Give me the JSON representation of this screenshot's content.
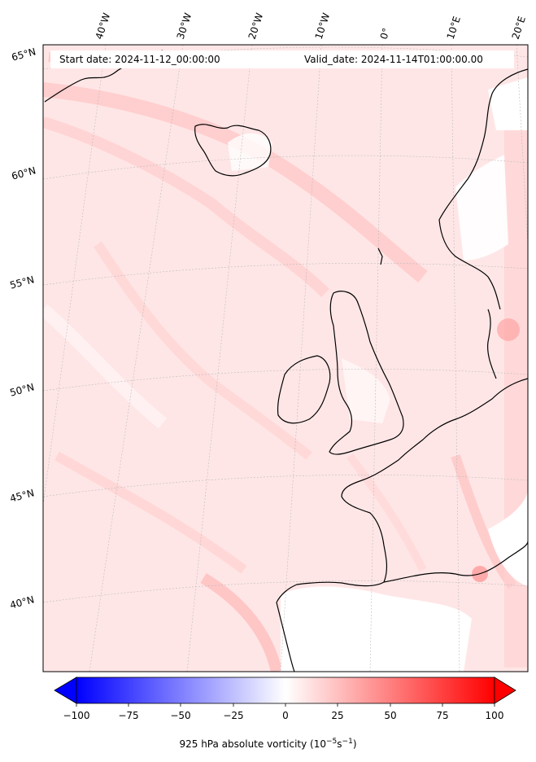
{
  "header": {
    "start_date": "Start date: 2024-11-12_00:00:00",
    "valid_date": "Valid_date: 2024-11-14T01:00:00.00"
  },
  "map": {
    "longitude_labels": [
      "40°W",
      "30°W",
      "20°W",
      "10°W",
      "0°",
      "10°E",
      "20°E"
    ],
    "latitude_labels": [
      "65°N",
      "60°N",
      "55°N",
      "50°N",
      "45°N",
      "40°N"
    ],
    "field": "925 hPa absolute vorticity",
    "colormap": "bwr",
    "colors": {
      "negative": "#0000ff",
      "zero": "#ffffff",
      "positive": "#ff0000",
      "coastline": "#000000"
    }
  },
  "colorbar": {
    "ticks": [
      "−100",
      "−75",
      "−50",
      "−25",
      "0",
      "25",
      "50",
      "75",
      "100"
    ],
    "range": [
      -100,
      100
    ],
    "extend": "both",
    "label_main": "925 hPa absolute vorticity (10",
    "label_exp1": "−5",
    "label_mid": "s",
    "label_exp2": "−1",
    "label_end": ")"
  }
}
